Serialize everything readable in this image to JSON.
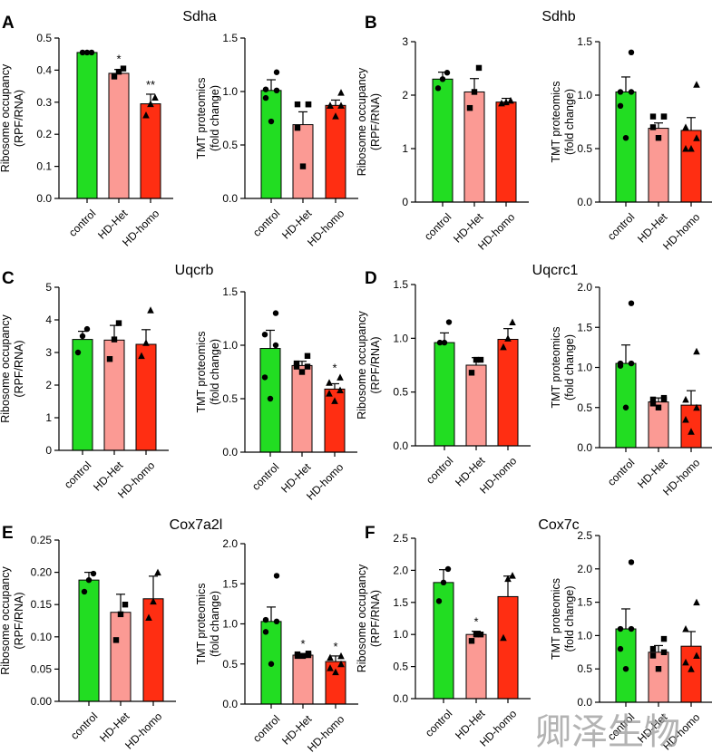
{
  "watermark": "卿泽生物",
  "chart_data": [
    {
      "panel": "A",
      "gene": "Sdha",
      "type": "bar",
      "measure": "ribosome",
      "ylabel": [
        "Ribosome occupancy",
        "(RPF/RNA)"
      ],
      "categories": [
        "control",
        "HD-Het",
        "HD-homo"
      ],
      "ylim": [
        0,
        0.5
      ],
      "ticks": [
        0.0,
        0.1,
        0.2,
        0.3,
        0.4,
        0.5
      ],
      "tick_labels": [
        "0.0",
        "0.1",
        "0.2",
        "0.3",
        "0.4",
        "0.5"
      ],
      "values": [
        0.455,
        0.39,
        0.295
      ],
      "errors": [
        0.0,
        0.012,
        0.03
      ],
      "points": [
        [
          0.455,
          0.455,
          0.455
        ],
        [
          0.38,
          0.395,
          0.405
        ],
        [
          0.26,
          0.295,
          0.315
        ]
      ],
      "significance": [
        "",
        "*",
        "**"
      ]
    },
    {
      "panel": "A",
      "gene": "Sdha",
      "type": "bar",
      "measure": "tmt",
      "ylabel": [
        "TMT proteomics",
        "(fold change)"
      ],
      "categories": [
        "control",
        "HD-Het",
        "HD-homo"
      ],
      "ylim": [
        0,
        1.5
      ],
      "ticks": [
        0.0,
        0.5,
        1.0,
        1.5
      ],
      "tick_labels": [
        "0.0",
        "0.5",
        "1.0",
        "1.5"
      ],
      "values": [
        1.01,
        0.69,
        0.87
      ],
      "errors": [
        0.1,
        0.12,
        0.05
      ],
      "points": [
        [
          0.72,
          0.94,
          1.01,
          1.02,
          1.18
        ],
        [
          0.3,
          0.66,
          0.88,
          0.88,
          0.88
        ],
        [
          0.77,
          0.87,
          0.87,
          0.87,
          0.99
        ]
      ],
      "significance": [
        "",
        "",
        ""
      ]
    },
    {
      "panel": "B",
      "gene": "Sdhb",
      "type": "bar",
      "measure": "ribosome",
      "ylabel": [
        "Ribosome occupancy",
        "(RPF/RNA)"
      ],
      "categories": [
        "control",
        "HD-Het",
        "HD-homo"
      ],
      "ylim": [
        0,
        3
      ],
      "ticks": [
        0,
        1,
        2,
        3
      ],
      "tick_labels": [
        "0",
        "1",
        "2",
        "3"
      ],
      "values": [
        2.3,
        2.06,
        1.87
      ],
      "errors": [
        0.13,
        0.25,
        0.07
      ],
      "points": [
        [
          2.13,
          2.3,
          2.42
        ],
        [
          1.76,
          2.06,
          2.51
        ],
        [
          1.85,
          1.87,
          1.9
        ]
      ],
      "significance": [
        "",
        "",
        ""
      ]
    },
    {
      "panel": "B",
      "gene": "Sdhb",
      "type": "bar",
      "measure": "tmt",
      "ylabel": [
        "TMT proteomics",
        "(fold change)"
      ],
      "categories": [
        "control",
        "HD-Het",
        "HD-homo"
      ],
      "ylim": [
        0,
        1.5
      ],
      "ticks": [
        0.0,
        0.5,
        1.0,
        1.5
      ],
      "tick_labels": [
        "0.0",
        "0.5",
        "1.0",
        "1.5"
      ],
      "values": [
        1.03,
        0.69,
        0.67
      ],
      "errors": [
        0.14,
        0.05,
        0.12
      ],
      "points": [
        [
          0.6,
          0.9,
          1.03,
          1.03,
          1.4
        ],
        [
          0.6,
          0.7,
          0.8,
          0.8,
          0.8
        ],
        [
          0.5,
          0.5,
          0.6,
          0.7,
          1.1
        ]
      ],
      "significance": [
        "",
        "",
        ""
      ]
    },
    {
      "panel": "C",
      "gene": "Uqcrb",
      "type": "bar",
      "measure": "ribosome",
      "ylabel": [
        "Ribosome occupancy",
        "(RPF/RNA)"
      ],
      "categories": [
        "control",
        "HD-Het",
        "HD-homo"
      ],
      "ylim": [
        0,
        5
      ],
      "ticks": [
        0,
        1,
        2,
        3,
        4,
        5
      ],
      "tick_labels": [
        "0",
        "1",
        "2",
        "3",
        "4",
        "5"
      ],
      "values": [
        3.4,
        3.38,
        3.25
      ],
      "errors": [
        0.25,
        0.45,
        0.45
      ],
      "points": [
        [
          3.0,
          3.5,
          3.72
        ],
        [
          2.8,
          3.4,
          3.9
        ],
        [
          2.9,
          3.3,
          4.3
        ]
      ],
      "significance": [
        "",
        "",
        ""
      ]
    },
    {
      "panel": "C",
      "gene": "Uqcrb",
      "type": "bar",
      "measure": "tmt",
      "ylabel": [
        "TMT proteomics",
        "(fold change)"
      ],
      "categories": [
        "control",
        "HD-Het",
        "HD-homo"
      ],
      "ylim": [
        0,
        1.5
      ],
      "ticks": [
        0.0,
        0.5,
        1.0,
        1.5
      ],
      "tick_labels": [
        "0.0",
        "0.5",
        "1.0",
        "1.5"
      ],
      "values": [
        0.97,
        0.81,
        0.59
      ],
      "errors": [
        0.17,
        0.04,
        0.05
      ],
      "points": [
        [
          0.5,
          0.7,
          1.0,
          1.1,
          1.3
        ],
        [
          0.75,
          0.8,
          0.8,
          0.83,
          0.9
        ],
        [
          0.48,
          0.55,
          0.58,
          0.65,
          0.7
        ]
      ],
      "significance": [
        "",
        "",
        "*"
      ]
    },
    {
      "panel": "D",
      "gene": "Uqcrc1",
      "type": "bar",
      "measure": "ribosome",
      "ylabel": [
        "Ribosome occupancy",
        "(RPF/RNA)"
      ],
      "categories": [
        "control",
        "HD-Het",
        "HD-homo"
      ],
      "ylim": [
        0,
        1.5
      ],
      "ticks": [
        0.0,
        0.5,
        1.0,
        1.5
      ],
      "tick_labels": [
        "0.0",
        "0.5",
        "1.0",
        "1.5"
      ],
      "values": [
        0.96,
        0.75,
        0.99
      ],
      "errors": [
        0.09,
        0.07,
        0.1
      ],
      "points": [
        [
          0.96,
          0.96,
          1.15
        ],
        [
          0.68,
          0.8,
          0.8
        ],
        [
          0.92,
          1.0,
          1.15
        ]
      ],
      "significance": [
        "",
        "",
        ""
      ]
    },
    {
      "panel": "D",
      "gene": "Uqcrc1",
      "type": "bar",
      "measure": "tmt",
      "ylabel": [
        "TMT proteomics",
        "(fold change)"
      ],
      "categories": [
        "control",
        "HD-Het",
        "HD-homo"
      ],
      "ylim": [
        0,
        2.0
      ],
      "ticks": [
        0.0,
        0.5,
        1.0,
        1.5,
        2.0
      ],
      "tick_labels": [
        "0.0",
        "0.5",
        "1.0",
        "1.5",
        "2.0"
      ],
      "values": [
        1.05,
        0.57,
        0.53
      ],
      "errors": [
        0.23,
        0.05,
        0.18
      ],
      "points": [
        [
          0.5,
          1.02,
          1.05,
          1.05,
          1.8
        ],
        [
          0.5,
          0.55,
          0.6,
          0.6,
          0.62
        ],
        [
          0.2,
          0.35,
          0.5,
          0.6,
          1.2
        ]
      ],
      "significance": [
        "",
        "",
        ""
      ]
    },
    {
      "panel": "E",
      "gene": "Cox7a2l",
      "type": "bar",
      "measure": "ribosome",
      "ylabel": [
        "Ribosome occupancy",
        "(RPF/RNA)"
      ],
      "categories": [
        "control",
        "HD-Het",
        "HD-homo"
      ],
      "ylim": [
        0,
        0.25
      ],
      "ticks": [
        0.0,
        0.05,
        0.1,
        0.15,
        0.2,
        0.25
      ],
      "tick_labels": [
        "0.00",
        "0.05",
        "0.10",
        "0.15",
        "0.20",
        "0.25"
      ],
      "values": [
        0.188,
        0.138,
        0.159
      ],
      "errors": [
        0.012,
        0.028,
        0.035
      ],
      "points": [
        [
          0.17,
          0.188,
          0.198
        ],
        [
          0.095,
          0.135,
          0.15
        ],
        [
          0.13,
          0.155,
          0.2
        ]
      ],
      "significance": [
        "",
        "",
        ""
      ]
    },
    {
      "panel": "E",
      "gene": "Cox7a2l",
      "type": "bar",
      "measure": "tmt",
      "ylabel": [
        "TMT proteomics",
        "(fold change)"
      ],
      "categories": [
        "control",
        "HD-Het",
        "HD-homo"
      ],
      "ylim": [
        0,
        2.0
      ],
      "ticks": [
        0.0,
        0.5,
        1.0,
        1.5,
        2.0
      ],
      "tick_labels": [
        "0.0",
        "0.5",
        "1.0",
        "1.5",
        "2.0"
      ],
      "values": [
        1.03,
        0.61,
        0.53
      ],
      "errors": [
        0.18,
        0.02,
        0.07
      ],
      "points": [
        [
          0.5,
          0.9,
          1.03,
          1.05,
          1.6
        ],
        [
          0.6,
          0.6,
          0.61,
          0.62,
          0.63
        ],
        [
          0.4,
          0.45,
          0.5,
          0.58,
          0.6
        ]
      ],
      "significance": [
        "",
        "*",
        "*"
      ]
    },
    {
      "panel": "F",
      "gene": "Cox7c",
      "type": "bar",
      "measure": "ribosome",
      "ylabel": [
        "Ribosome occupancy",
        "(RPF/RNA)"
      ],
      "categories": [
        "control",
        "HD-Het",
        "HD-homo"
      ],
      "ylim": [
        0,
        2.5
      ],
      "ticks": [
        0.0,
        0.5,
        1.0,
        1.5,
        2.0,
        2.5
      ],
      "tick_labels": [
        "0.0",
        "0.5",
        "1.0",
        "1.5",
        "2.0",
        "2.5"
      ],
      "values": [
        1.81,
        1.0,
        1.59
      ],
      "errors": [
        0.2,
        0.05,
        0.32
      ],
      "points": [
        [
          1.52,
          1.81,
          2.02
        ],
        [
          0.9,
          1.0,
          1.0
        ],
        [
          0.95,
          1.87,
          1.92
        ]
      ],
      "significance": [
        "",
        "*",
        ""
      ]
    },
    {
      "panel": "F",
      "gene": "Cox7c",
      "type": "bar",
      "measure": "tmt",
      "ylabel": [
        "TMT proteomics",
        "(fold change)"
      ],
      "categories": [
        "control",
        "HD-Het",
        "HD-homo"
      ],
      "ylim": [
        0,
        2.5
      ],
      "ticks": [
        0.0,
        0.5,
        1.0,
        1.5,
        2.0,
        2.5
      ],
      "tick_labels": [
        "0.0",
        "0.5",
        "1.0",
        "1.5",
        "2.0",
        "2.5"
      ],
      "values": [
        1.1,
        0.75,
        0.84
      ],
      "errors": [
        0.3,
        0.1,
        0.22
      ],
      "points": [
        [
          0.5,
          0.8,
          1.1,
          1.1,
          2.1
        ],
        [
          0.5,
          0.7,
          0.75,
          0.8,
          0.95
        ],
        [
          0.5,
          0.6,
          0.7,
          1.1,
          1.5
        ]
      ],
      "significance": [
        "",
        "",
        ""
      ]
    }
  ],
  "colors": {
    "control": "#22dd22",
    "HD-Het": "#fb9a94",
    "HD-homo": "#ff2e12",
    "axis": "#000000"
  },
  "point_markers": [
    "circle",
    "square",
    "triangle"
  ]
}
